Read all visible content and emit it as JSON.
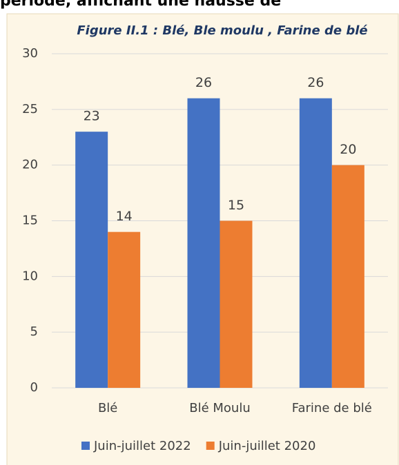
{
  "header_text": "période, affichant une hausse de",
  "chart_data": {
    "type": "bar",
    "title": "Figure II.1 : Blé, Ble moulu , Farine de blé",
    "categories": [
      "Blé",
      "Blé Moulu",
      "Farine de blé"
    ],
    "series": [
      {
        "name": "Juin-juillet 2022",
        "color": "#4472c4",
        "values": [
          23,
          26,
          26
        ]
      },
      {
        "name": "Juin-juillet 2020",
        "color": "#ed7d31",
        "values": [
          14,
          15,
          20
        ]
      }
    ],
    "ylim": [
      0,
      30
    ],
    "yticks": [
      0,
      5,
      10,
      15,
      20,
      25,
      30
    ],
    "grid": true,
    "legend": "bottom"
  }
}
